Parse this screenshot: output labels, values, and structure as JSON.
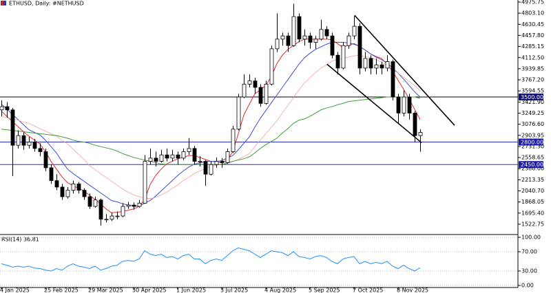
{
  "chart_data": [
    {
      "type": "candlestick",
      "title": "ETHUSD, Daily:  #NETHUSD",
      "categories": [
        "4 Jan 2025",
        null,
        null,
        null,
        null,
        null,
        null,
        null,
        "25 Feb 2025",
        null,
        null,
        null,
        null,
        null,
        null,
        null,
        "29 Mar 2025",
        null,
        null,
        null,
        null,
        null,
        null,
        null,
        "30 Apr 2025",
        null,
        null,
        null,
        null,
        null,
        null,
        null,
        "1 Jun 2025",
        null,
        null,
        null,
        null,
        null,
        null,
        null,
        "3 Jul 2025",
        null,
        null,
        null,
        null,
        null,
        null,
        null,
        "4 Aug 2025",
        null,
        null,
        null,
        null,
        null,
        null,
        null,
        "5 Sep 2025",
        null,
        null,
        null,
        null,
        null,
        null,
        null,
        "7 Oct 2025",
        null,
        null,
        null,
        null,
        null,
        null,
        null,
        "8 Nov 2025",
        null,
        null,
        null,
        null
      ],
      "ohlc": [
        [
          3300,
          3450,
          3200,
          3350
        ],
        [
          3350,
          3420,
          3180,
          3300
        ],
        [
          3300,
          3330,
          2270,
          2750
        ],
        [
          2750,
          2980,
          2700,
          2900
        ],
        [
          2900,
          2950,
          2680,
          2750
        ],
        [
          2750,
          2880,
          2700,
          2800
        ],
        [
          2800,
          2850,
          2650,
          2700
        ],
        [
          2700,
          2780,
          2580,
          2650
        ],
        [
          2650,
          2700,
          2350,
          2400
        ],
        [
          2400,
          2450,
          2150,
          2200
        ],
        [
          2200,
          2300,
          2050,
          2100
        ],
        [
          2100,
          2150,
          1900,
          1950
        ],
        [
          1950,
          2100,
          1920,
          2050
        ],
        [
          2050,
          2200,
          2000,
          2150
        ],
        [
          2150,
          2180,
          2000,
          2050
        ],
        [
          2050,
          2080,
          1900,
          1950
        ],
        [
          1950,
          2000,
          1760,
          1800
        ],
        [
          1800,
          1950,
          1780,
          1900
        ],
        [
          1900,
          1920,
          1500,
          1600
        ],
        [
          1600,
          1680,
          1550,
          1600
        ],
        [
          1600,
          1700,
          1570,
          1650
        ],
        [
          1650,
          1720,
          1600,
          1650
        ],
        [
          1650,
          1850,
          1630,
          1800
        ],
        [
          1800,
          1870,
          1760,
          1820
        ],
        [
          1820,
          1860,
          1750,
          1800
        ],
        [
          1800,
          1900,
          1780,
          1850
        ],
        [
          1850,
          2600,
          1840,
          2500
        ],
        [
          2500,
          2700,
          2450,
          2550
        ],
        [
          2550,
          2650,
          2420,
          2500
        ],
        [
          2500,
          2680,
          2480,
          2600
        ],
        [
          2600,
          2700,
          2500,
          2550
        ],
        [
          2550,
          2680,
          2500,
          2600
        ],
        [
          2600,
          2650,
          2450,
          2550
        ],
        [
          2550,
          2700,
          2520,
          2650
        ],
        [
          2650,
          2860,
          2600,
          2700
        ],
        [
          2700,
          2740,
          2450,
          2500
        ],
        [
          2500,
          2580,
          2420,
          2500
        ],
        [
          2500,
          2520,
          2120,
          2300
        ],
        [
          2300,
          2500,
          2280,
          2450
        ],
        [
          2450,
          2560,
          2400,
          2500
        ],
        [
          2500,
          2550,
          2400,
          2480
        ],
        [
          2480,
          2700,
          2460,
          2650
        ],
        [
          2650,
          3050,
          2630,
          3000
        ],
        [
          3000,
          3550,
          2980,
          3500
        ],
        [
          3500,
          3850,
          3480,
          3700
        ],
        [
          3700,
          3850,
          3650,
          3750
        ],
        [
          3750,
          3800,
          3550,
          3650
        ],
        [
          3650,
          3700,
          3350,
          3400
        ],
        [
          3400,
          3750,
          3380,
          3700
        ],
        [
          3700,
          4300,
          3680,
          4250
        ],
        [
          4250,
          4800,
          4200,
          4400
        ],
        [
          4400,
          4500,
          4300,
          4450
        ],
        [
          4450,
          4500,
          4200,
          4300
        ],
        [
          4300,
          4950,
          4280,
          4750
        ],
        [
          4750,
          4800,
          4350,
          4400
        ],
        [
          4400,
          4550,
          4300,
          4450
        ],
        [
          4450,
          4500,
          4250,
          4350
        ],
        [
          4350,
          4450,
          4250,
          4400
        ],
        [
          4400,
          4700,
          4380,
          4550
        ],
        [
          4550,
          4600,
          4400,
          4450
        ],
        [
          4450,
          4500,
          4100,
          4150
        ],
        [
          4150,
          4200,
          3850,
          3950
        ],
        [
          3950,
          4350,
          3930,
          4300
        ],
        [
          4300,
          4500,
          4250,
          4450
        ],
        [
          4450,
          4760,
          4400,
          4600
        ],
        [
          4600,
          4650,
          3850,
          3950
        ],
        [
          3950,
          4200,
          3900,
          4100
        ],
        [
          4100,
          4150,
          3850,
          3950
        ],
        [
          3950,
          4100,
          3850,
          4000
        ],
        [
          4000,
          4050,
          3850,
          3950
        ],
        [
          3950,
          4150,
          3900,
          4050
        ],
        [
          4050,
          4080,
          3450,
          3500
        ],
        [
          3500,
          3550,
          3100,
          3250
        ],
        [
          3250,
          3600,
          3200,
          3500
        ],
        [
          3500,
          3550,
          3150,
          3250
        ],
        [
          3250,
          3280,
          2800,
          2900
        ],
        [
          2900,
          3000,
          2650,
          2950
        ]
      ],
      "series": [
        {
          "color": "#e8262b",
          "values": [
            3280,
            3200,
            3120,
            3040,
            2960,
            2890,
            2830,
            2770,
            2650,
            2500,
            2380,
            2260,
            2170,
            2120,
            2080,
            2040,
            1970,
            1910,
            1840,
            1760,
            1700,
            1710,
            1720,
            1740,
            1760,
            1800,
            1900,
            2140,
            2280,
            2380,
            2460,
            2500,
            2540,
            2560,
            2590,
            2590,
            2560,
            2530,
            2500,
            2490,
            2480,
            2520,
            2650,
            2930,
            3220,
            3390,
            3550,
            3610,
            3680,
            3820,
            4020,
            4150,
            4240,
            4300,
            4360,
            4400,
            4400,
            4400,
            4400,
            4400,
            4390,
            4330,
            4270,
            4310,
            4330,
            4290,
            4230,
            4170,
            4130,
            4100,
            4010,
            3900,
            3760,
            3620,
            3470,
            3310,
            3150
          ]
        },
        {
          "color": "#3a4fd0",
          "values": [
            3390,
            3310,
            3230,
            3150,
            3070,
            2990,
            2950,
            2910,
            2830,
            2730,
            2630,
            2500,
            2380,
            2310,
            2250,
            2190,
            2130,
            2070,
            2010,
            1950,
            1890,
            1870,
            1840,
            1820,
            1810,
            1800,
            1850,
            1890,
            1960,
            2040,
            2120,
            2200,
            2280,
            2350,
            2410,
            2455,
            2475,
            2495,
            2500,
            2500,
            2510,
            2550,
            2590,
            2680,
            2780,
            2880,
            3030,
            3170,
            3290,
            3410,
            3530,
            3650,
            3770,
            3890,
            4010,
            4110,
            4180,
            4240,
            4280,
            4320,
            4350,
            4350,
            4350,
            4340,
            4320,
            4290,
            4230,
            4170,
            4120,
            4080,
            4030,
            3950,
            3870,
            3780,
            3680,
            3580,
            3500
          ]
        },
        {
          "color": "#f4a09a",
          "values": [
            3200,
            3180,
            3160,
            3140,
            3110,
            3090,
            3050,
            3010,
            2970,
            2930,
            2890,
            2830,
            2770,
            2690,
            2610,
            2530,
            2430,
            2370,
            2310,
            2250,
            2190,
            2130,
            2070,
            2020,
            1980,
            1950,
            1930,
            1920,
            1940,
            1980,
            2020,
            2080,
            2130,
            2200,
            2250,
            2310,
            2350,
            2390,
            2420,
            2440,
            2460,
            2480,
            2500,
            2530,
            2570,
            2620,
            2730,
            2830,
            2930,
            3030,
            3130,
            3250,
            3370,
            3490,
            3610,
            3720,
            3800,
            3880,
            3950,
            4000,
            4060,
            4080,
            4100,
            4120,
            4140,
            4150,
            4130,
            4110,
            4080,
            4040,
            3990,
            3930,
            3870,
            3810,
            3740,
            3680,
            3600
          ]
        },
        {
          "color": "#3f9a3f",
          "values": [
            3000,
            2990,
            2980,
            2970,
            2960,
            2950,
            2940,
            2930,
            2920,
            2910,
            2900,
            2880,
            2860,
            2830,
            2810,
            2800,
            2780,
            2750,
            2730,
            2710,
            2690,
            2660,
            2620,
            2590,
            2560,
            2540,
            2520,
            2500,
            2480,
            2460,
            2450,
            2450,
            2450,
            2450,
            2450,
            2450,
            2450,
            2450,
            2450,
            2450,
            2450,
            2470,
            2500,
            2520,
            2540,
            2570,
            2630,
            2700,
            2760,
            2810,
            2860,
            2940,
            3010,
            3090,
            3140,
            3160,
            3200,
            3250,
            3300,
            3330,
            3350,
            3380,
            3400,
            3430,
            3440,
            3450,
            3460,
            3470,
            3480,
            3490,
            3500,
            3500,
            3500,
            3500,
            3500,
            3500,
            3480
          ]
        }
      ],
      "ylim": [
        1362,
        5008
      ],
      "yticks": [
        4975.75,
        {
          "value": 4803.1,
          "label": "4803.10"
        },
        4630.45,
        {
          "value": 4457.8,
          "label": "4457.80"
        },
        4285.15,
        {
          "value": 4112.5,
          "label": "4112.50"
        },
        3939.85,
        {
          "value": 3767.2,
          "label": "3767.20"
        },
        3594.55,
        {
          "value": 3421.9,
          "label": "3421.90"
        },
        3249.25,
        {
          "value": 3076.6,
          "label": "3076.60"
        },
        2903.95,
        {
          "value": 2731.3,
          "label": "2731.30"
        },
        2558.65,
        {
          "value": 2386,
          "label": "2386.00"
        },
        2213.35,
        {
          "value": 2040.7,
          "label": "2040.70"
        },
        1868.05,
        {
          "value": 1695.4,
          "label": "1695.40"
        },
        1522.75
      ],
      "levels": [
        {
          "value": 3500,
          "label": "3500.00",
          "color": "#000000",
          "badge": "#10106e"
        },
        {
          "value": 2800,
          "label": "2800.00",
          "color": "#2a2ab8",
          "badge": "#1a1aa8"
        },
        {
          "value": 2450,
          "label": "2450.00",
          "color": "#2a2ab8",
          "badge": "#1a1aa8"
        }
      ],
      "trendlines": [
        {
          "start": [
            64.1,
            4770
          ],
          "end": [
            82.25,
            3060
          ]
        },
        {
          "start": [
            59.1,
            4010
          ],
          "end": [
            76.25,
            2790
          ]
        }
      ]
    },
    {
      "type": "line",
      "title": "RSI(14) 36.81",
      "series": [
        {
          "color": "#1e90ff",
          "values": [
            45,
            42,
            38,
            40,
            38,
            40,
            36,
            35,
            32,
            30,
            35,
            32,
            40,
            45,
            40,
            38,
            35,
            40,
            32,
            35,
            40,
            42,
            50,
            52,
            50,
            55,
            72,
            65,
            62,
            65,
            58,
            60,
            55,
            62,
            65,
            55,
            55,
            45,
            52,
            55,
            52,
            62,
            72,
            78,
            75,
            72,
            65,
            58,
            65,
            72,
            70,
            68,
            62,
            70,
            60,
            58,
            55,
            60,
            62,
            58,
            50,
            45,
            55,
            58,
            60,
            45,
            50,
            45,
            48,
            45,
            50,
            40,
            35,
            42,
            35,
            30,
            36.81
          ]
        }
      ],
      "ylim": [
        -4.3,
        102.9
      ],
      "yticks": [
        {
          "value": 100,
          "label": "100.00"
        },
        {
          "value": 70,
          "label": "70.00"
        },
        {
          "value": 30,
          "label": "30.00"
        },
        {
          "value": 0,
          "label": "0.00"
        }
      ]
    }
  ]
}
